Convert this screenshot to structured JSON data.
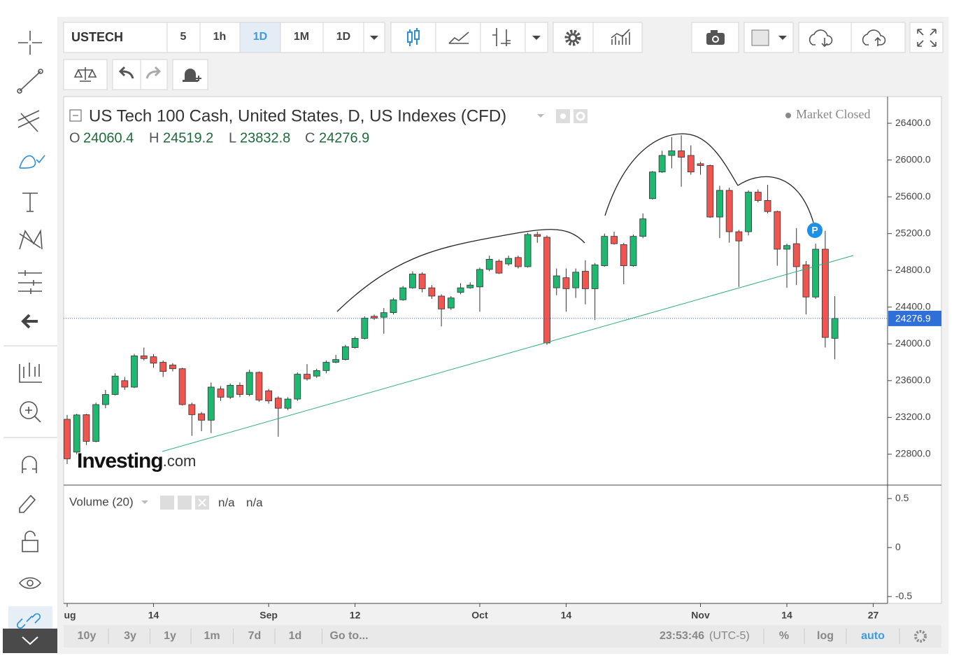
{
  "toolbar": {
    "symbol": "USTECH",
    "intervals": [
      "5",
      "1h",
      "1D",
      "1M",
      "1D"
    ]
  },
  "ranges": [
    "10y",
    "3y",
    "1y",
    "1m",
    "7d",
    "1d",
    "Go to..."
  ],
  "clock": {
    "time": "23:53:46",
    "zone": "(UTC-5)"
  },
  "scale_options": [
    "%",
    "log",
    "auto"
  ],
  "logo": {
    "brand": "Investing",
    "suffix": ".com"
  },
  "volume": {
    "title": "Volume (20)",
    "values_text": [
      "n/a",
      "n/a"
    ],
    "ylim": [
      -0.57,
      0.63
    ],
    "yticks": [
      0.5,
      0,
      -0.5
    ]
  },
  "chart_data": {
    "type": "candlestick",
    "title": "US Tech 100 Cash, United States, D, US Indexes (CFD)",
    "status": "Market Closed",
    "ohlc_labels": [
      "O",
      "H",
      "L",
      "C"
    ],
    "marker": "P",
    "up_color": "#1fb871",
    "down_color": "#f0554f",
    "last_price_color": "#2f6fd8",
    "categories": [
      "ug",
      null,
      null,
      null,
      null,
      null,
      null,
      null,
      null,
      "14",
      null,
      null,
      null,
      null,
      null,
      null,
      null,
      null,
      null,
      null,
      null,
      "Sep",
      null,
      null,
      null,
      null,
      null,
      null,
      null,
      null,
      "12",
      null,
      null,
      null,
      null,
      null,
      null,
      null,
      null,
      null,
      null,
      null,
      null,
      "Oct",
      null,
      null,
      null,
      null,
      null,
      null,
      null,
      null,
      "14",
      null,
      null,
      null,
      null,
      null,
      null,
      null,
      null,
      null,
      null,
      null,
      null,
      null,
      "Nov",
      null,
      null,
      null,
      null,
      null,
      null,
      null,
      null,
      "14",
      null,
      null,
      null,
      null,
      null,
      null,
      null,
      null,
      "27"
    ],
    "open": [
      23180,
      22823,
      23230,
      22940,
      23340,
      23450,
      23600,
      23530,
      23870,
      23860,
      23800,
      23770,
      23730,
      23340,
      23240,
      23170,
      23510,
      23420,
      23550,
      23450,
      23690,
      23490,
      23410,
      23300,
      23400,
      23670,
      23650,
      23710,
      23800,
      23830,
      23960,
      24060,
      24300,
      24290,
      24340,
      24480,
      24610,
      24760,
      24610,
      24520,
      24390,
      24560,
      24610,
      24620,
      24810,
      24900,
      24870,
      24940,
      24840,
      25190,
      25160,
      24610,
      24720,
      24610,
      24790,
      24600,
      24850,
      25170,
      25080,
      24850,
      25170,
      25580,
      25870,
      26050,
      26100,
      26050,
      25960,
      25940,
      25380,
      25670,
      25220,
      25220,
      25650,
      25560,
      25440,
      25030,
      25090,
      24860,
      24510,
      25030,
      24060.4,
      null,
      null,
      null,
      null
    ],
    "high": [
      23227,
      23240,
      23240,
      23360,
      23500,
      23680,
      23640,
      23890,
      23960,
      23890,
      23820,
      23790,
      23740,
      23360,
      23260,
      23580,
      23540,
      23570,
      23580,
      23720,
      23700,
      23510,
      23430,
      23420,
      23690,
      23780,
      23730,
      23820,
      23880,
      23990,
      24080,
      24300,
      24320,
      24390,
      24500,
      24630,
      24790,
      24780,
      24640,
      24540,
      24520,
      24660,
      24670,
      24830,
      24960,
      24920,
      24960,
      24960,
      25210,
      25220,
      25180,
      24820,
      24820,
      24820,
      24910,
      24880,
      25200,
      25220,
      25100,
      25190,
      25420,
      25880,
      26100,
      26250,
      26270,
      26160,
      25980,
      25950,
      25720,
      25700,
      25240,
      25670,
      25680,
      25730,
      25450,
      25090,
      25260,
      24900,
      25090,
      25230,
      24519.2,
      null,
      null,
      null,
      null
    ],
    "low": [
      22693,
      22800,
      22900,
      22930,
      23300,
      23440,
      23500,
      23520,
      23820,
      23740,
      23640,
      23700,
      23330,
      23000,
      23050,
      23030,
      23380,
      23400,
      23420,
      23430,
      23370,
      23350,
      22990,
      23280,
      23380,
      23600,
      23630,
      23680,
      23790,
      23820,
      23950,
      24050,
      24260,
      24110,
      24320,
      24470,
      24600,
      24560,
      24490,
      24190,
      24370,
      24540,
      24600,
      24350,
      24790,
      24760,
      24850,
      24820,
      24830,
      25100,
      23990,
      24530,
      24350,
      24500,
      24430,
      24260,
      24840,
      25080,
      24650,
      24840,
      25150,
      25570,
      25860,
      25910,
      25710,
      25840,
      25840,
      25370,
      25150,
      25100,
      24620,
      25180,
      25540,
      25420,
      24850,
      24610,
      24640,
      24320,
      24490,
      23960,
      23832.8,
      null,
      null,
      null,
      null
    ],
    "close": [
      22750,
      23227,
      22940,
      23340,
      23450,
      23650,
      23530,
      23870,
      23840,
      23790,
      23700,
      23730,
      23340,
      23230,
      23170,
      23530,
      23420,
      23550,
      23450,
      23690,
      23390,
      23380,
      23300,
      23400,
      23670,
      23620,
      23710,
      23800,
      23830,
      23970,
      24060,
      24280,
      24280,
      24340,
      24480,
      24610,
      24760,
      24600,
      24520,
      24380,
      24500,
      24610,
      24640,
      24810,
      24920,
      24770,
      24930,
      24840,
      25190,
      25170,
      24010,
      24740,
      24600,
      24780,
      24600,
      24860,
      25170,
      25090,
      24850,
      25170,
      25360,
      25870,
      26050,
      26100,
      26030,
      25870,
      25940,
      25380,
      25670,
      25220,
      25120,
      25650,
      25560,
      25440,
      25030,
      25070,
      24840,
      24510,
      25030,
      24070,
      24276.9,
      null,
      null,
      null,
      null
    ],
    "ylim": [
      22464,
      26690
    ],
    "yticks": [
      {
        "value": 22800,
        "label": "22800.0"
      },
      {
        "value": 23200,
        "label": "23200.0"
      },
      {
        "value": 23600,
        "label": "23600.0"
      },
      {
        "value": 24000,
        "label": "24000.0"
      },
      {
        "value": 24400,
        "label": "24400.0"
      },
      {
        "value": 24800,
        "label": "24800.0"
      },
      {
        "value": 25200,
        "label": "25200.0"
      },
      {
        "value": 25600,
        "label": "25600.0"
      },
      {
        "value": 26000,
        "label": "26000.0"
      },
      {
        "value": 26400,
        "label": "26400.0"
      }
    ]
  }
}
